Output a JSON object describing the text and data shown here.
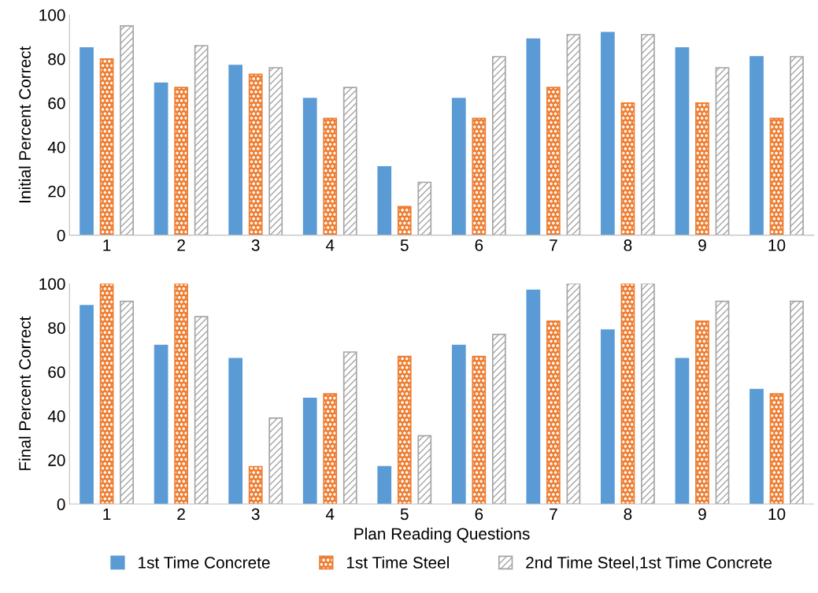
{
  "chart_data": [
    {
      "type": "bar",
      "ylabel": "Initial Percent Correct",
      "categories": [
        "1",
        "2",
        "3",
        "4",
        "5",
        "6",
        "7",
        "8",
        "9",
        "10"
      ],
      "ylim": [
        0,
        100
      ],
      "yticks": [
        0,
        20,
        40,
        60,
        80,
        100
      ],
      "grid": false,
      "series": [
        {
          "color": "#5b9bd5",
          "values": [
            85,
            69,
            77,
            62,
            31,
            62,
            89,
            92,
            85,
            81
          ]
        },
        {
          "color": "#ed7d31",
          "values": [
            80,
            67,
            73,
            53,
            13,
            53,
            67,
            60,
            60,
            53
          ]
        },
        {
          "color": "#a5a5a5",
          "values": [
            95,
            86,
            76,
            67,
            24,
            81,
            91,
            91,
            76,
            81
          ]
        }
      ]
    },
    {
      "type": "bar",
      "ylabel": "Final Percent Correct",
      "xlabel": "Plan Reading Questions",
      "categories": [
        "1",
        "2",
        "3",
        "4",
        "5",
        "6",
        "7",
        "8",
        "9",
        "10"
      ],
      "ylim": [
        0,
        100
      ],
      "yticks": [
        0,
        20,
        40,
        60,
        80,
        100
      ],
      "grid": false,
      "legend": "bottom",
      "series": [
        {
          "name": "1st Time Concrete",
          "color": "#5b9bd5",
          "values": [
            90,
            72,
            66,
            48,
            17,
            72,
            97,
            79,
            66,
            52
          ]
        },
        {
          "name": "1st Time Steel",
          "color": "#ed7d31",
          "values": [
            100,
            100,
            17,
            50,
            67,
            67,
            83,
            100,
            83,
            50
          ]
        },
        {
          "name": "2nd Time Steel,1st Time Concrete",
          "color": "#a5a5a5",
          "values": [
            92,
            85,
            39,
            69,
            31,
            77,
            100,
            100,
            92,
            92
          ]
        }
      ]
    }
  ]
}
